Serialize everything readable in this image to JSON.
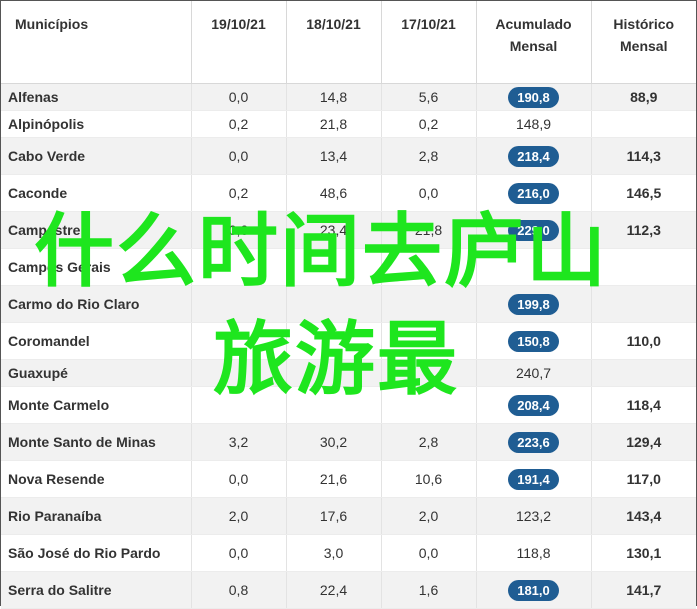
{
  "table": {
    "headers": {
      "municipio": "Municípios",
      "d1": "19/10/21",
      "d2": "18/10/21",
      "d3": "17/10/21",
      "acumulado": "Acumulado Mensal",
      "historico": "Histórico Mensal"
    },
    "rows": [
      {
        "name": "Alfenas",
        "d1": "0,0",
        "d2": "14,8",
        "d3": "5,6",
        "acum": "190,8",
        "hist": "88,9",
        "badge": true
      },
      {
        "name": "Alpinópolis",
        "d1": "0,2",
        "d2": "21,8",
        "d3": "0,2",
        "acum": "148,9",
        "hist": "",
        "badge": false
      },
      {
        "name": "Cabo Verde",
        "d1": "0,0",
        "d2": "13,4",
        "d3": "2,8",
        "acum": "218,4",
        "hist": "114,3",
        "badge": true
      },
      {
        "name": "Caconde",
        "d1": "0,2",
        "d2": "48,6",
        "d3": "0,0",
        "acum": "216,0",
        "hist": "146,5",
        "badge": true
      },
      {
        "name": "Campestre",
        "d1": "0,0",
        "d2": "23,4",
        "d3": "21,8",
        "acum": "229,0",
        "hist": "112,3",
        "badge": true
      },
      {
        "name": "Campos Gerais",
        "d1": "",
        "d2": "",
        "d3": "",
        "acum": "",
        "hist": "",
        "badge": true
      },
      {
        "name": "Carmo do Rio Claro",
        "d1": "",
        "d2": "",
        "d3": "",
        "acum": "199,8",
        "hist": "",
        "badge": true
      },
      {
        "name": "Coromandel",
        "d1": "",
        "d2": "",
        "d3": "",
        "acum": "150,8",
        "hist": "110,0",
        "badge": true
      },
      {
        "name": "Guaxupé",
        "d1": "",
        "d2": "",
        "d3": "",
        "acum": "240,7",
        "hist": "",
        "badge": false
      },
      {
        "name": "Monte Carmelo",
        "d1": "",
        "d2": "",
        "d3": "",
        "acum": "208,4",
        "hist": "118,4",
        "badge": true
      },
      {
        "name": "Monte Santo de Minas",
        "d1": "3,2",
        "d2": "30,2",
        "d3": "2,8",
        "acum": "223,6",
        "hist": "129,4",
        "badge": true
      },
      {
        "name": "Nova Resende",
        "d1": "0,0",
        "d2": "21,6",
        "d3": "10,6",
        "acum": "191,4",
        "hist": "117,0",
        "badge": true
      },
      {
        "name": "Rio Paranaíba",
        "d1": "2,0",
        "d2": "17,6",
        "d3": "2,0",
        "acum": "123,2",
        "hist": "143,4",
        "badge": false
      },
      {
        "name": "São José do Rio Pardo",
        "d1": "0,0",
        "d2": "3,0",
        "d3": "0,0",
        "acum": "118,8",
        "hist": "130,1",
        "badge": false
      },
      {
        "name": "Serra do Salitre",
        "d1": "0,8",
        "d2": "22,4",
        "d3": "1,6",
        "acum": "181,0",
        "hist": "141,7",
        "badge": true
      }
    ]
  },
  "overlay": {
    "line1": "什么时间去庐山",
    "line2": "旅游最",
    "color": "#1ee61e"
  },
  "colors": {
    "badge": "#1f5d93",
    "stripe": "#f2f2f2"
  }
}
